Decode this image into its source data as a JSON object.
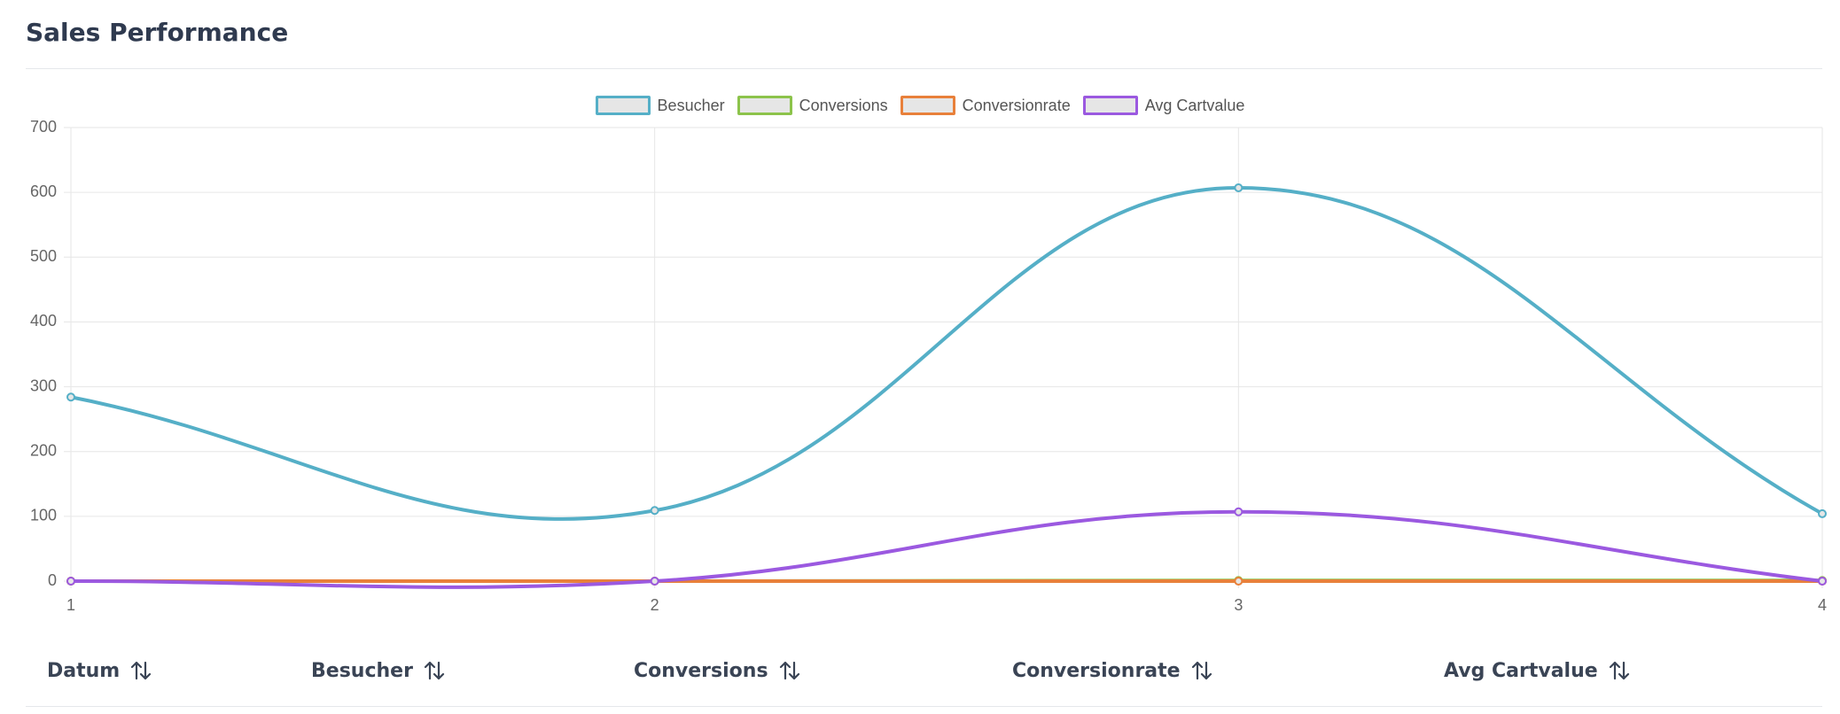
{
  "chart_data": {
    "type": "line",
    "title": "Sales Performance",
    "x": [
      1,
      2,
      3,
      4
    ],
    "xlim": [
      1,
      4
    ],
    "xticks": [
      1,
      2,
      3,
      4
    ],
    "ylim": [
      0,
      700
    ],
    "yticks": [
      0,
      100,
      200,
      300,
      400,
      500,
      600,
      700
    ],
    "grid": true,
    "legend": "top",
    "series": [
      {
        "name": "Besucher",
        "color": "#55afc7",
        "values": [
          284,
          109,
          607,
          104
        ]
      },
      {
        "name": "Conversions",
        "color": "#8cc34b",
        "values": [
          0,
          0,
          1,
          1
        ]
      },
      {
        "name": "Conversionrate",
        "color": "#e8803a",
        "values": [
          0,
          0,
          0,
          0
        ]
      },
      {
        "name": "Avg Cartvalue",
        "color": "#9b59e0",
        "values": [
          0,
          0,
          107,
          0
        ]
      }
    ]
  },
  "table": {
    "columns": [
      "Datum",
      "Besucher",
      "Conversions",
      "Conversionrate",
      "Avg Cartvalue"
    ]
  }
}
